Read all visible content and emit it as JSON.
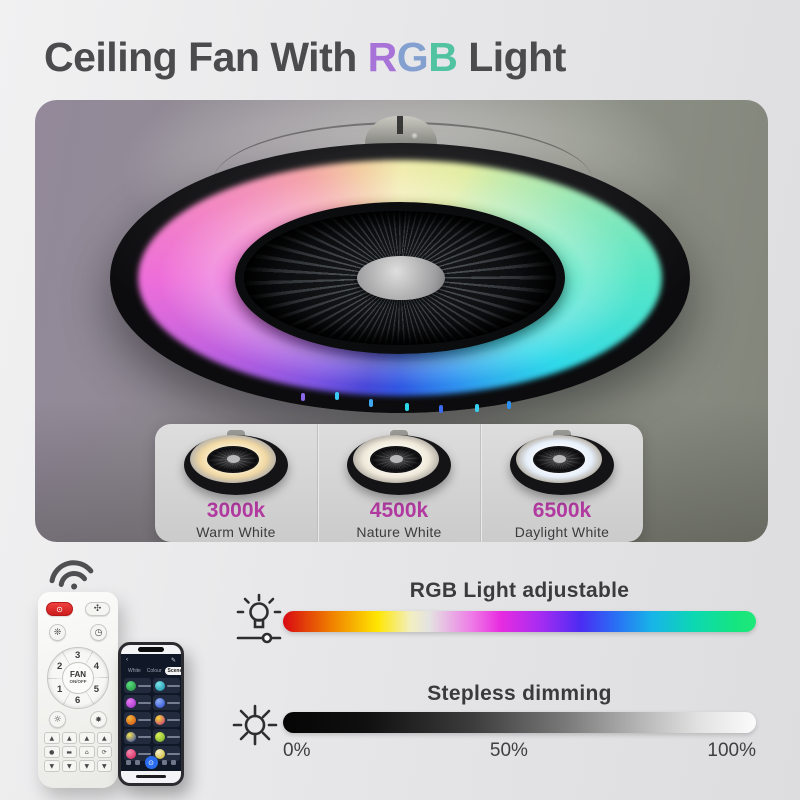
{
  "header": {
    "title_prefix": "Ceiling Fan With ",
    "rgb": {
      "r": "R",
      "g": "G",
      "b": "B"
    },
    "title_suffix": " Light"
  },
  "colors": {
    "title_text": "#4b4b4e",
    "rgb_r": "#a873d8",
    "rgb_g": "#84a0d0",
    "rgb_b": "#52c3a0",
    "accent_temp": "#b13aa0",
    "rgb_bar": [
      "#d80812",
      "#ef7d00 10%",
      "#ffe602 20%",
      "#f2efc2 27%",
      "#e4e2e2 31%",
      "#ee7ae6 40%",
      "#e82ce0 46%",
      "#a12cf2 55%",
      "#4b2cf2 63%",
      "#2a6cf5 70%",
      "#18b4e8 78%",
      "#0cd8b2 87%",
      "#16e57e 96%",
      "#1ee878"
    ],
    "dim_bar": [
      "#050505",
      "#101010 18%",
      "#3c3c3c 40%",
      "#7a7a7a 60%",
      "#b4b4b4 75%",
      "#e2e2e2 88%",
      "#fbfbfb"
    ],
    "fan_ring": [
      "#f2ecb0",
      "#e2eda4 9%",
      "#a8e9b4 17%",
      "#55e6c6 25%",
      "#2fd9e9 33%",
      "#2f93f0 42%",
      "#3058e2 50%",
      "#4a48d8 55%",
      "#7e55e2 61%",
      "#b85fe0 68%",
      "#ee6ed9 75%",
      "#f389c2 81%",
      "#f4a4a8 88%",
      "#f3cba2 94%",
      "#f2ecb0"
    ]
  },
  "cct": {
    "options": [
      {
        "temp": "3000k",
        "label": "Warm White",
        "glow_center": "#fdf6e0",
        "glow": "#f2d9a4"
      },
      {
        "temp": "4500k",
        "label": "Nature White",
        "glow_center": "#fefdf8",
        "glow": "#efe9da"
      },
      {
        "temp": "6500k",
        "label": "Daylight White",
        "glow_center": "#ffffff",
        "glow": "#e6effa"
      }
    ]
  },
  "remote": {
    "center_label": "FAN",
    "center_sub": "ON/OFF",
    "dial_numbers": [
      "3",
      "4",
      "5",
      "6",
      "1",
      "2"
    ],
    "cluster_mids": [
      "dot",
      "cct",
      "tent",
      "cycle"
    ]
  },
  "icons": {
    "power": "⊙",
    "fan_blades": "✣",
    "fan_swirl": "❊",
    "timer": "◷",
    "bulb": "☼",
    "rgb_lamp": "✸",
    "up": "▲",
    "down": "▼",
    "dot": "●",
    "cct": "▬",
    "tent": "⌂",
    "cycle": "⟳",
    "back": "‹",
    "edit": "✎",
    "nav_power": "⊙",
    "status_time": "5:41"
  },
  "phone": {
    "tabs": [
      {
        "label": "White",
        "active": false
      },
      {
        "label": "Colour",
        "active": false
      },
      {
        "label": "Scene",
        "active": true
      }
    ],
    "scenes": [
      {
        "colors": [
          "#1f8a3a",
          "#5ade7e"
        ]
      },
      {
        "colors": [
          "#128aa2",
          "#7ae4ea"
        ]
      },
      {
        "colors": [
          "#9a2cc4",
          "#e77af2"
        ]
      },
      {
        "colors": [
          "#2648cf",
          "#8fb0f5"
        ]
      },
      {
        "colors": [
          "#d4490f",
          "#f2b73c"
        ]
      },
      {
        "colors": [
          "#c42a7a",
          "#f2d73c"
        ]
      },
      {
        "colors": [
          "#2a3cb0",
          "#f2e44e"
        ]
      },
      {
        "colors": [
          "#6aa824",
          "#dcef5a"
        ]
      },
      {
        "colors": [
          "#d41e52",
          "#f58ab0"
        ]
      },
      {
        "colors": [
          "#c4ae1a",
          "#f8f2cc"
        ]
      }
    ]
  },
  "features": {
    "rgb": {
      "title": "RGB Light adjustable"
    },
    "dimming": {
      "title": "Stepless dimming",
      "scale": [
        "0%",
        "50%",
        "100%"
      ]
    }
  }
}
